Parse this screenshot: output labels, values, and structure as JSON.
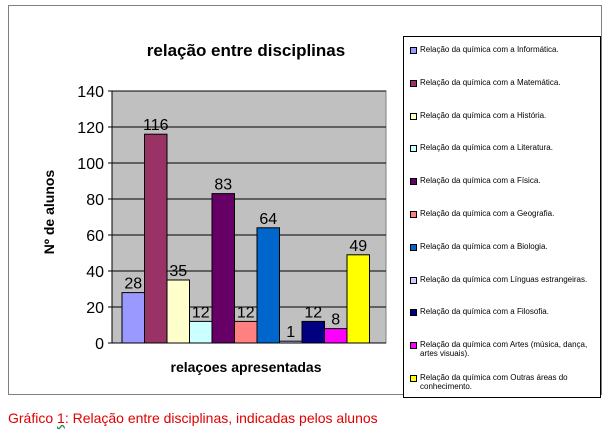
{
  "chart_data": {
    "type": "bar",
    "title": "relação entre disciplinas",
    "xlabel": "relaçoes apresentadas",
    "ylabel": "Nº de alunos",
    "ylim": [
      0,
      140
    ],
    "yticks": [
      "0",
      "20",
      "40",
      "60",
      "80",
      "100",
      "120",
      "140"
    ],
    "grid": true,
    "legend_position": "right",
    "series": [
      {
        "name": "Relação da química com a Informática.",
        "value": 28,
        "label": "28",
        "color": "#9999ff"
      },
      {
        "name": "Relação da química com a Matemática.",
        "value": 116,
        "label": "116",
        "color": "#993366"
      },
      {
        "name": "Relação da química com a História.",
        "value": 35,
        "label": "35",
        "color": "#ffffcc"
      },
      {
        "name": "Relação da química com a Literatura.",
        "value": 12,
        "label": "12",
        "color": "#ccffff"
      },
      {
        "name": "Relação da química com a Física.",
        "value": 83,
        "label": "83",
        "color": "#660066"
      },
      {
        "name": "Relação da química com a Geografia.",
        "value": 12,
        "label": "12",
        "color": "#ff8080"
      },
      {
        "name": "Relação da química com a Biologia.",
        "value": 64,
        "label": "64",
        "color": "#0066cc"
      },
      {
        "name": "Relação da química com Línguas estrangeiras.",
        "value": 1,
        "label": "1",
        "color": "#ccccff"
      },
      {
        "name": "Relação da química com a Filosofia.",
        "value": 12,
        "label": "12",
        "color": "#000080"
      },
      {
        "name": "Relação da química com Artes (música, dança, artes visuais).",
        "value": 8,
        "label": "8",
        "color": "#ff00ff"
      },
      {
        "name": "Relação da química com Outras áreas do conhecimento.",
        "value": 49,
        "label": "49",
        "color": "#ffff00"
      }
    ],
    "plot_background": "#c0c0c0"
  },
  "caption": {
    "prefix": "Gráfico ",
    "number": "1",
    "rest": ": Relação entre disciplinas, indicadas pelos alunos"
  }
}
